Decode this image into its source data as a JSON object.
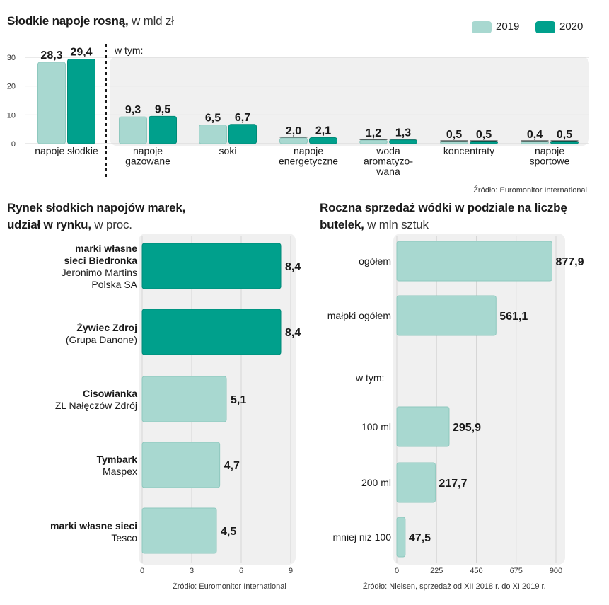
{
  "colors": {
    "c2019": "#a8d8d0",
    "c2020": "#00a08c",
    "panel": "#f0f0f0",
    "edge2019": "#8ec8be",
    "edge2020": "#008a78"
  },
  "top": {
    "title_bold": "Słodkie napoje rosną,",
    "title_thin": "w mld zł",
    "legend": [
      "2019",
      "2020"
    ],
    "w_tym": "w tym:",
    "source": "Źródło: Euromonitor International"
  },
  "left": {
    "title_line1": "Rynek słodkich napojów marek,",
    "title_line2_bold": "udział w rynku,",
    "title_line2_thin": "w proc.",
    "source": "Źródło: Euromonitor International",
    "categories": [
      {
        "bold1": "marki własne",
        "bold2": "sieci Biedronka",
        "sub1": "Jeronimo Martins",
        "sub2": "Polska SA"
      },
      {
        "bold1": "Żywiec Zdroj",
        "sub1": "(Grupa Danone)"
      },
      {
        "bold1": "Cisowianka",
        "sub1": "ZL Nałęczów Zdrój"
      },
      {
        "bold1": "Tymbark",
        "sub1": "Maspex"
      },
      {
        "bold1": "marki własne sieci",
        "sub1": "Tesco"
      }
    ]
  },
  "right": {
    "title_line1": "Roczna sprzedaż wódki w podziale na liczbę",
    "title_line2_bold": "butelek,",
    "title_line2_thin": "w mln sztuk",
    "w_tym": "w tym:",
    "source": "Źródło: Nielsen, sprzedaż od XII 2018 r. do XI 2019 r."
  },
  "chart_data": [
    {
      "type": "bar",
      "title": "Słodkie napoje rosną, w mld zł",
      "categories": [
        "napoje słodkie",
        "napoje gazowane",
        "soki",
        "napoje energetyczne",
        "woda aromatyzowana",
        "koncentraty",
        "napoje sportowe"
      ],
      "category_lines": [
        [
          "napoje słodkie"
        ],
        [
          "napoje",
          "gazowane"
        ],
        [
          "soki"
        ],
        [
          "napoje",
          "energetyczne"
        ],
        [
          "woda",
          "aromatyzo-",
          "wana"
        ],
        [
          "koncentraty"
        ],
        [
          "napoje",
          "sportowe"
        ]
      ],
      "series": [
        {
          "name": "2019",
          "values": [
            28.3,
            9.3,
            6.5,
            2.0,
            1.2,
            0.5,
            0.4
          ],
          "labels": [
            "28,3",
            "9,3",
            "6,5",
            "2,0",
            "1,2",
            "0,5",
            "0,4"
          ]
        },
        {
          "name": "2020",
          "values": [
            29.4,
            9.5,
            6.7,
            2.1,
            1.3,
            0.5,
            0.5
          ],
          "labels": [
            "29,4",
            "9,5",
            "6,7",
            "2,1",
            "1,3",
            "0,5",
            "0,5"
          ]
        }
      ],
      "yticks": [
        0,
        10,
        20,
        30
      ],
      "ylim": [
        0,
        30
      ],
      "legend_position": "top-right"
    },
    {
      "type": "bar",
      "orientation": "horizontal",
      "title": "Rynek słodkich napojów marek, udział w rynku, w proc.",
      "categories": [
        "marki własne sieci Biedronka Jeronimo Martins Polska SA",
        "Żywiec Zdroj (Grupa Danone)",
        "Cisowianka ZL Nałęczów Zdrój",
        "Tymbark Maspex",
        "marki własne sieci Tesco"
      ],
      "values": [
        8.4,
        8.4,
        5.1,
        4.7,
        4.5
      ],
      "labels": [
        "8,4",
        "8,4",
        "5,1",
        "4,7",
        "4,5"
      ],
      "highlight": [
        true,
        true,
        false,
        false,
        false
      ],
      "xticks": [
        0,
        3,
        6,
        9
      ],
      "xlim": [
        0,
        9
      ]
    },
    {
      "type": "bar",
      "orientation": "horizontal",
      "title": "Roczna sprzedaż wódki w podziale na liczbę butelek, w mln sztuk",
      "categories": [
        "ogółem",
        "małpki ogółem",
        "100 ml",
        "200 ml",
        "mniej niż 100"
      ],
      "values": [
        877.9,
        561.1,
        295.9,
        217.7,
        47.5
      ],
      "labels": [
        "877,9",
        "561,1",
        "295,9",
        "217,7",
        "47,5"
      ],
      "xticks": [
        0,
        225,
        450,
        675,
        900
      ],
      "xlim": [
        0,
        900
      ]
    }
  ]
}
